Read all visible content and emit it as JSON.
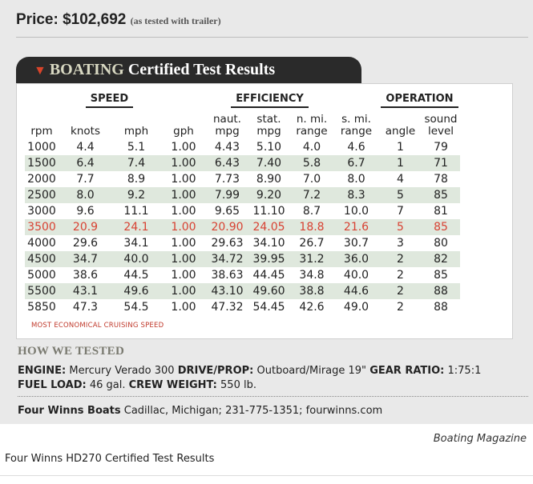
{
  "price": {
    "label": "Price: $102,692",
    "note": "(as tested with trailer)"
  },
  "section_title": {
    "brand": "BOATING",
    "rest": " Certified Test Results"
  },
  "groups": {
    "speed": "SPEED",
    "efficiency": "EFFICIENCY",
    "operation": "OPERATION"
  },
  "columns": [
    [
      "rpm"
    ],
    [
      "knots"
    ],
    [
      "mph"
    ],
    [
      "gph"
    ],
    [
      "naut.",
      "mpg"
    ],
    [
      "stat.",
      "mpg"
    ],
    [
      "n. mi.",
      "range"
    ],
    [
      "s. mi.",
      "range"
    ],
    [
      "angle"
    ],
    [
      "sound",
      "level"
    ]
  ],
  "rows": [
    [
      "1000",
      "4.4",
      "5.1",
      "1.00",
      "4.43",
      "5.10",
      "4.0",
      "4.6",
      "1",
      "79"
    ],
    [
      "1500",
      "6.4",
      "7.4",
      "1.00",
      "6.43",
      "7.40",
      "5.8",
      "6.7",
      "1",
      "71"
    ],
    [
      "2000",
      "7.7",
      "8.9",
      "1.00",
      "7.73",
      "8.90",
      "7.0",
      "8.0",
      "4",
      "78"
    ],
    [
      "2500",
      "8.0",
      "9.2",
      "1.00",
      "7.99",
      "9.20",
      "7.2",
      "8.3",
      "5",
      "85"
    ],
    [
      "3000",
      "9.6",
      "11.1",
      "1.00",
      "9.65",
      "11.10",
      "8.7",
      "10.0",
      "7",
      "81"
    ],
    [
      "3500",
      "20.9",
      "24.1",
      "1.00",
      "20.90",
      "24.05",
      "18.8",
      "21.6",
      "5",
      "85"
    ],
    [
      "4000",
      "29.6",
      "34.1",
      "1.00",
      "29.63",
      "34.10",
      "26.7",
      "30.7",
      "3",
      "80"
    ],
    [
      "4500",
      "34.7",
      "40.0",
      "1.00",
      "34.72",
      "39.95",
      "31.2",
      "36.0",
      "2",
      "82"
    ],
    [
      "5000",
      "38.6",
      "44.5",
      "1.00",
      "38.63",
      "44.45",
      "34.8",
      "40.0",
      "2",
      "85"
    ],
    [
      "5500",
      "43.1",
      "49.6",
      "1.00",
      "43.10",
      "49.60",
      "38.8",
      "44.6",
      "2",
      "88"
    ],
    [
      "5850",
      "47.3",
      "54.5",
      "1.00",
      "47.32",
      "54.45",
      "42.6",
      "49.0",
      "2",
      "88"
    ]
  ],
  "highlight_row": 5,
  "highlight_color": "#d84233",
  "legend": "MOST ECONOMICAL CRUISING SPEED",
  "how_title": "HOW WE TESTED",
  "how": {
    "engine_label": "ENGINE:",
    "engine": "Mercury Verado 300",
    "drive_label": "DRIVE/PROP:",
    "drive": "Outboard/Mirage 19\"",
    "gear_label": "GEAR RATIO:",
    "gear": "1:75:1",
    "fuel_label": "FUEL LOAD:",
    "fuel": "46 gal.",
    "crew_label": "CREW WEIGHT:",
    "crew": "550 lb."
  },
  "contact": {
    "name": "Four Winns Boats",
    "details": "Cadillac, Michigan; 231-775-1351; fourwinns.com"
  },
  "credit": "Boating Magazine",
  "caption": "Four Winns HD270 Certified Test Results"
}
